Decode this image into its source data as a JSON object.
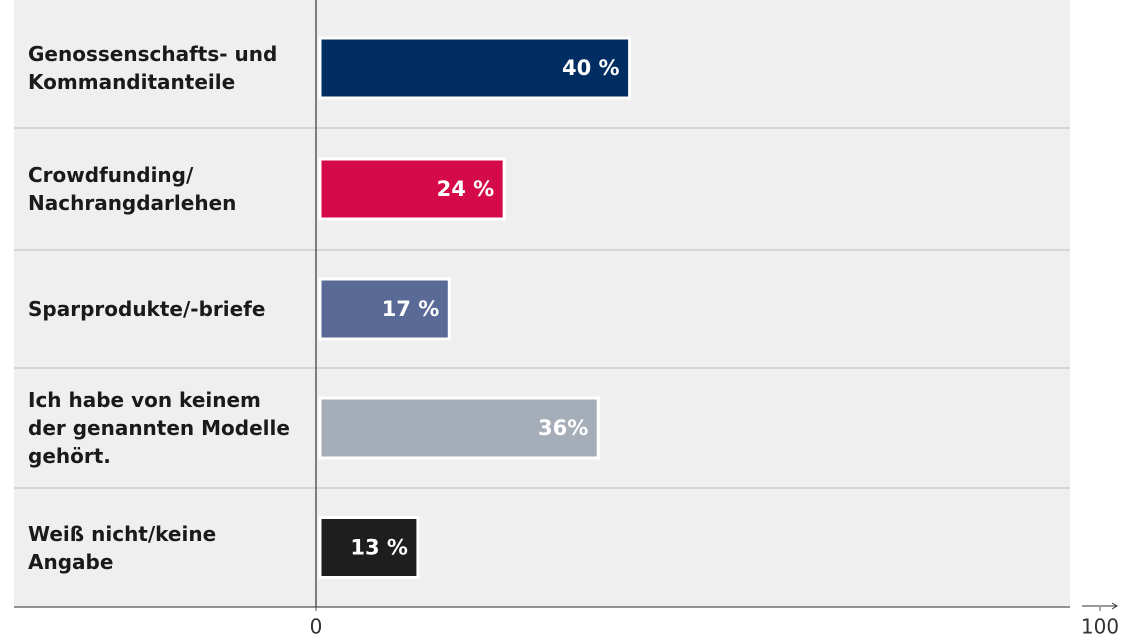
{
  "chart_data": {
    "type": "hbar",
    "categories": [
      "Genossenschafts- und\nKommanditanteile",
      "Crowdfunding/\nNachrangdarlehen",
      "Sparprodukte/-briefe",
      "Ich habe von keinem\nder genannten Modelle\ngehört.",
      "Weiß nicht/keine\nAngabe"
    ],
    "values": [
      40,
      24,
      17,
      36,
      13
    ],
    "value_labels": [
      "40 %",
      "24 %",
      "17 %",
      "36%",
      "13 %"
    ],
    "colors": [
      "#002d62",
      "#d50a4a",
      "#5a6a96",
      "#a5adb8",
      "#1e1e1e"
    ],
    "xlim": [
      0,
      100
    ],
    "xticks": [
      0,
      100
    ]
  }
}
